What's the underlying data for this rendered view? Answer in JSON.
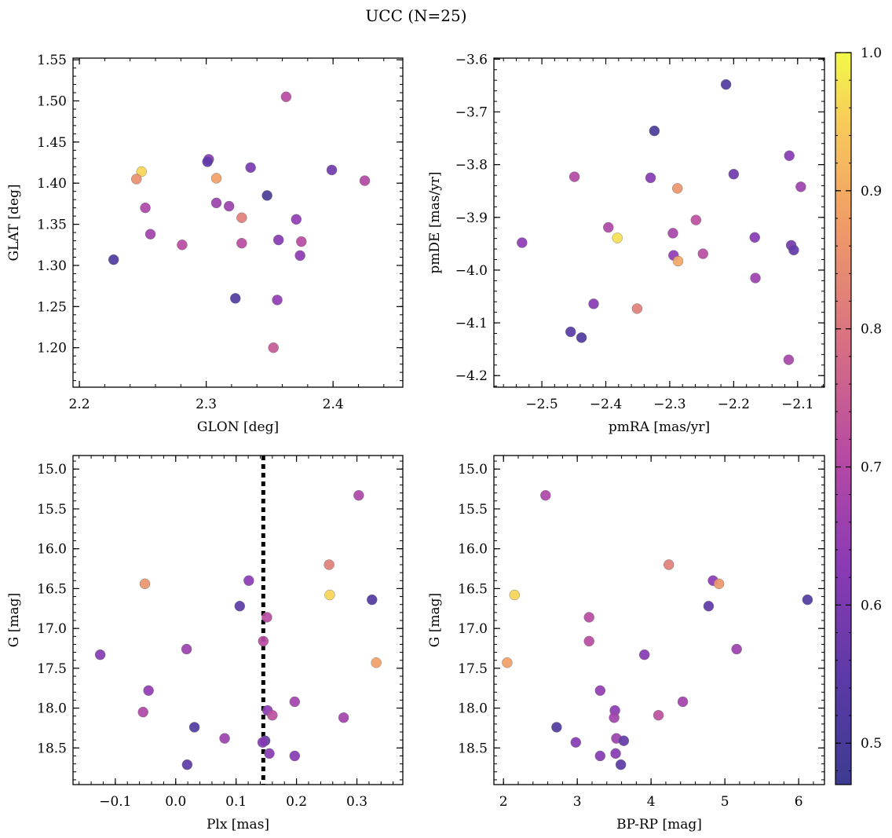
{
  "title": "UCC (N=25)",
  "colorbar": {
    "range": [
      0.47,
      1.0
    ],
    "ticks": [
      "0.5",
      "0.6",
      "0.7",
      "0.8",
      "0.9",
      "1.0"
    ],
    "colormap": "plasma"
  },
  "chart_data": [
    {
      "type": "scatter",
      "xlabel": "GLON [deg]",
      "ylabel": "GLAT [deg]",
      "xlim": [
        2.195,
        2.455
      ],
      "ylim": [
        1.152,
        1.552
      ],
      "yinvert": false,
      "xticks": [
        2.2,
        2.3,
        2.4
      ],
      "xtick_labels": [
        "2.2",
        "2.3",
        "2.4"
      ],
      "yticks": [
        1.2,
        1.25,
        1.3,
        1.35,
        1.4,
        1.45,
        1.5,
        1.55
      ],
      "ytick_labels": [
        "1.20",
        "1.25",
        "1.30",
        "1.35",
        "1.40",
        "1.45",
        "1.50",
        "1.55"
      ],
      "points": [
        {
          "x": 2.363,
          "y": 1.505,
          "c": 0.71
        },
        {
          "x": 2.302,
          "y": 1.429,
          "c": 0.63
        },
        {
          "x": 2.301,
          "y": 1.426,
          "c": 0.55
        },
        {
          "x": 2.335,
          "y": 1.419,
          "c": 0.6
        },
        {
          "x": 2.399,
          "y": 1.416,
          "c": 0.58
        },
        {
          "x": 2.249,
          "y": 1.414,
          "c": 0.96
        },
        {
          "x": 2.308,
          "y": 1.406,
          "c": 0.88
        },
        {
          "x": 2.245,
          "y": 1.405,
          "c": 0.85
        },
        {
          "x": 2.425,
          "y": 1.403,
          "c": 0.7
        },
        {
          "x": 2.348,
          "y": 1.385,
          "c": 0.5
        },
        {
          "x": 2.308,
          "y": 1.376,
          "c": 0.66
        },
        {
          "x": 2.318,
          "y": 1.372,
          "c": 0.66
        },
        {
          "x": 2.252,
          "y": 1.37,
          "c": 0.69
        },
        {
          "x": 2.328,
          "y": 1.358,
          "c": 0.82
        },
        {
          "x": 2.371,
          "y": 1.356,
          "c": 0.64
        },
        {
          "x": 2.256,
          "y": 1.338,
          "c": 0.67
        },
        {
          "x": 2.357,
          "y": 1.331,
          "c": 0.62
        },
        {
          "x": 2.375,
          "y": 1.329,
          "c": 0.71
        },
        {
          "x": 2.328,
          "y": 1.327,
          "c": 0.71
        },
        {
          "x": 2.281,
          "y": 1.325,
          "c": 0.71
        },
        {
          "x": 2.374,
          "y": 1.312,
          "c": 0.63
        },
        {
          "x": 2.227,
          "y": 1.307,
          "c": 0.52
        },
        {
          "x": 2.323,
          "y": 1.26,
          "c": 0.52
        },
        {
          "x": 2.356,
          "y": 1.258,
          "c": 0.64
        },
        {
          "x": 2.353,
          "y": 1.2,
          "c": 0.74
        }
      ]
    },
    {
      "type": "scatter",
      "xlabel": "pmRA [mas/yr]",
      "ylabel": "pmDE [mas/yr]",
      "xlim": [
        -2.575,
        -2.058
      ],
      "ylim": [
        -4.222,
        -3.598
      ],
      "yinvert": false,
      "xticks": [
        -2.5,
        -2.4,
        -2.3,
        -2.2,
        -2.1
      ],
      "xtick_labels": [
        "−2.5",
        "−2.4",
        "−2.3",
        "−2.2",
        "−2.1"
      ],
      "yticks": [
        -4.2,
        -4.1,
        -4.0,
        -3.9,
        -3.8,
        -3.7,
        -3.6
      ],
      "ytick_labels": [
        "−4.2",
        "−4.1",
        "−4.0",
        "−3.9",
        "−3.8",
        "−3.7",
        "−3.6"
      ],
      "points": [
        {
          "x": -2.212,
          "y": -3.648,
          "c": 0.52
        },
        {
          "x": -2.324,
          "y": -3.736,
          "c": 0.5
        },
        {
          "x": -2.113,
          "y": -3.783,
          "c": 0.62
        },
        {
          "x": -2.2,
          "y": -3.818,
          "c": 0.58
        },
        {
          "x": -2.449,
          "y": -3.823,
          "c": 0.7
        },
        {
          "x": -2.33,
          "y": -3.825,
          "c": 0.62
        },
        {
          "x": -2.095,
          "y": -3.842,
          "c": 0.66
        },
        {
          "x": -2.288,
          "y": -3.845,
          "c": 0.86
        },
        {
          "x": -2.259,
          "y": -3.905,
          "c": 0.72
        },
        {
          "x": -2.396,
          "y": -3.919,
          "c": 0.69
        },
        {
          "x": -2.295,
          "y": -3.93,
          "c": 0.68
        },
        {
          "x": -2.167,
          "y": -3.938,
          "c": 0.62
        },
        {
          "x": -2.382,
          "y": -3.939,
          "c": 0.97
        },
        {
          "x": -2.531,
          "y": -3.948,
          "c": 0.63
        },
        {
          "x": -2.11,
          "y": -3.953,
          "c": 0.59
        },
        {
          "x": -2.106,
          "y": -3.962,
          "c": 0.56
        },
        {
          "x": -2.248,
          "y": -3.969,
          "c": 0.71
        },
        {
          "x": -2.294,
          "y": -3.972,
          "c": 0.64
        },
        {
          "x": -2.287,
          "y": -3.983,
          "c": 0.89
        },
        {
          "x": -2.166,
          "y": -4.015,
          "c": 0.66
        },
        {
          "x": -2.419,
          "y": -4.064,
          "c": 0.62
        },
        {
          "x": -2.351,
          "y": -4.073,
          "c": 0.82
        },
        {
          "x": -2.455,
          "y": -4.117,
          "c": 0.54
        },
        {
          "x": -2.438,
          "y": -4.128,
          "c": 0.52
        },
        {
          "x": -2.114,
          "y": -4.17,
          "c": 0.68
        }
      ]
    },
    {
      "type": "scatter",
      "xlabel": "Plx [mas]",
      "ylabel": "G [mag]",
      "xlim": [
        -0.17,
        0.376
      ],
      "ylim": [
        18.96,
        14.83
      ],
      "yinvert": true,
      "vline": 0.145,
      "xticks": [
        -0.1,
        0.0,
        0.1,
        0.2,
        0.3
      ],
      "xtick_labels": [
        "−0.1",
        "0.0",
        "0.1",
        "0.2",
        "0.3"
      ],
      "yticks": [
        15.0,
        15.5,
        16.0,
        16.5,
        17.0,
        17.5,
        18.0,
        18.5
      ],
      "ytick_labels": [
        "15.0",
        "15.5",
        "16.0",
        "16.5",
        "17.0",
        "17.5",
        "18.0",
        "18.5"
      ],
      "points": [
        {
          "x": 0.303,
          "y": 15.33,
          "c": 0.69
        },
        {
          "x": 0.254,
          "y": 16.2,
          "c": 0.82
        },
        {
          "x": 0.121,
          "y": 16.4,
          "c": 0.63
        },
        {
          "x": -0.051,
          "y": 16.44,
          "c": 0.86
        },
        {
          "x": 0.255,
          "y": 16.58,
          "c": 0.96
        },
        {
          "x": 0.325,
          "y": 16.64,
          "c": 0.52
        },
        {
          "x": 0.106,
          "y": 16.72,
          "c": 0.55
        },
        {
          "x": 0.151,
          "y": 16.86,
          "c": 0.71
        },
        {
          "x": 0.145,
          "y": 17.16,
          "c": 0.71
        },
        {
          "x": 0.018,
          "y": 17.26,
          "c": 0.66
        },
        {
          "x": -0.125,
          "y": 17.33,
          "c": 0.62
        },
        {
          "x": 0.332,
          "y": 17.43,
          "c": 0.88
        },
        {
          "x": -0.045,
          "y": 17.78,
          "c": 0.64
        },
        {
          "x": 0.197,
          "y": 17.92,
          "c": 0.67
        },
        {
          "x": 0.152,
          "y": 18.03,
          "c": 0.63
        },
        {
          "x": -0.054,
          "y": 18.05,
          "c": 0.69
        },
        {
          "x": 0.16,
          "y": 18.09,
          "c": 0.72
        },
        {
          "x": 0.278,
          "y": 18.12,
          "c": 0.67
        },
        {
          "x": 0.031,
          "y": 18.24,
          "c": 0.52
        },
        {
          "x": 0.081,
          "y": 18.38,
          "c": 0.66
        },
        {
          "x": 0.148,
          "y": 18.41,
          "c": 0.56
        },
        {
          "x": 0.144,
          "y": 18.43,
          "c": 0.62
        },
        {
          "x": 0.155,
          "y": 18.57,
          "c": 0.62
        },
        {
          "x": 0.197,
          "y": 18.6,
          "c": 0.62
        },
        {
          "x": 0.019,
          "y": 18.71,
          "c": 0.55
        }
      ]
    },
    {
      "type": "scatter",
      "xlabel": "BP-RP [mag]",
      "ylabel": "G [mag]",
      "xlim": [
        1.87,
        6.35
      ],
      "ylim": [
        18.96,
        14.83
      ],
      "yinvert": true,
      "xticks": [
        2,
        3,
        4,
        5,
        6
      ],
      "xtick_labels": [
        "2",
        "3",
        "4",
        "5",
        "6"
      ],
      "yticks": [
        15.0,
        15.5,
        16.0,
        16.5,
        17.0,
        17.5,
        18.0,
        18.5
      ],
      "ytick_labels": [
        "15.0",
        "15.5",
        "16.0",
        "16.5",
        "17.0",
        "17.5",
        "18.0",
        "18.5"
      ],
      "points": [
        {
          "x": 2.57,
          "y": 15.33,
          "c": 0.69
        },
        {
          "x": 4.24,
          "y": 16.2,
          "c": 0.82
        },
        {
          "x": 4.84,
          "y": 16.4,
          "c": 0.63
        },
        {
          "x": 4.92,
          "y": 16.44,
          "c": 0.86
        },
        {
          "x": 2.15,
          "y": 16.58,
          "c": 0.96
        },
        {
          "x": 6.12,
          "y": 16.64,
          "c": 0.52
        },
        {
          "x": 4.78,
          "y": 16.72,
          "c": 0.55
        },
        {
          "x": 3.16,
          "y": 16.86,
          "c": 0.71
        },
        {
          "x": 3.16,
          "y": 17.16,
          "c": 0.71
        },
        {
          "x": 5.16,
          "y": 17.26,
          "c": 0.66
        },
        {
          "x": 3.91,
          "y": 17.33,
          "c": 0.62
        },
        {
          "x": 2.05,
          "y": 17.43,
          "c": 0.88
        },
        {
          "x": 3.31,
          "y": 17.78,
          "c": 0.64
        },
        {
          "x": 4.43,
          "y": 17.92,
          "c": 0.67
        },
        {
          "x": 3.51,
          "y": 18.03,
          "c": 0.63
        },
        {
          "x": 4.1,
          "y": 18.09,
          "c": 0.72
        },
        {
          "x": 3.5,
          "y": 18.12,
          "c": 0.67
        },
        {
          "x": 2.72,
          "y": 18.24,
          "c": 0.52
        },
        {
          "x": 3.53,
          "y": 18.38,
          "c": 0.66
        },
        {
          "x": 3.63,
          "y": 18.41,
          "c": 0.56
        },
        {
          "x": 2.98,
          "y": 18.43,
          "c": 0.62
        },
        {
          "x": 3.52,
          "y": 18.57,
          "c": 0.62
        },
        {
          "x": 3.31,
          "y": 18.6,
          "c": 0.62
        },
        {
          "x": 3.59,
          "y": 18.71,
          "c": 0.55
        }
      ]
    }
  ]
}
